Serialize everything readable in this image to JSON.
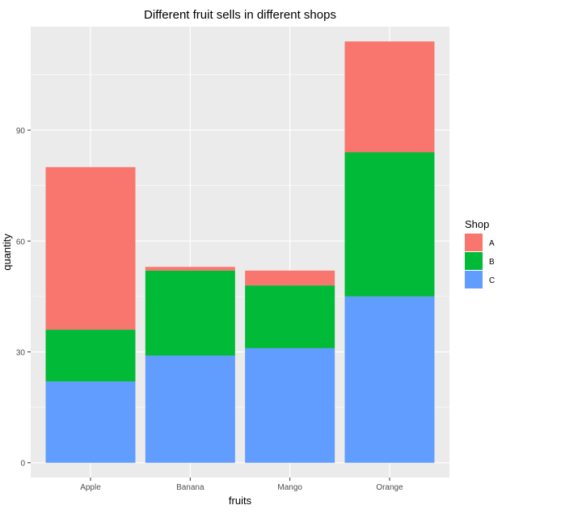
{
  "chart_data": {
    "type": "bar",
    "stacked": true,
    "title": "Different fruit sells in different shops",
    "xlabel": "fruits",
    "ylabel": "quantity",
    "categories": [
      "Apple",
      "Banana",
      "Mango",
      "Orange"
    ],
    "series": [
      {
        "name": "A",
        "color": "#F8766D",
        "values": [
          44,
          1,
          4,
          30
        ]
      },
      {
        "name": "B",
        "color": "#00BA38",
        "values": [
          14,
          23,
          17,
          39
        ]
      },
      {
        "name": "C",
        "color": "#619CFF",
        "values": [
          22,
          29,
          31,
          45
        ]
      }
    ],
    "stack_order_bottom_to_top": [
      "C",
      "B",
      "A"
    ],
    "ylim": [
      -4,
      118
    ],
    "yticks": [
      0,
      30,
      60,
      90
    ],
    "ytick_labels": [
      "0",
      "30",
      "60",
      "90"
    ],
    "legend": {
      "title": "Shop",
      "placement": "right"
    },
    "grid": true,
    "panel_background": "#EBEBEB",
    "grid_color": "#FFFFFF"
  }
}
